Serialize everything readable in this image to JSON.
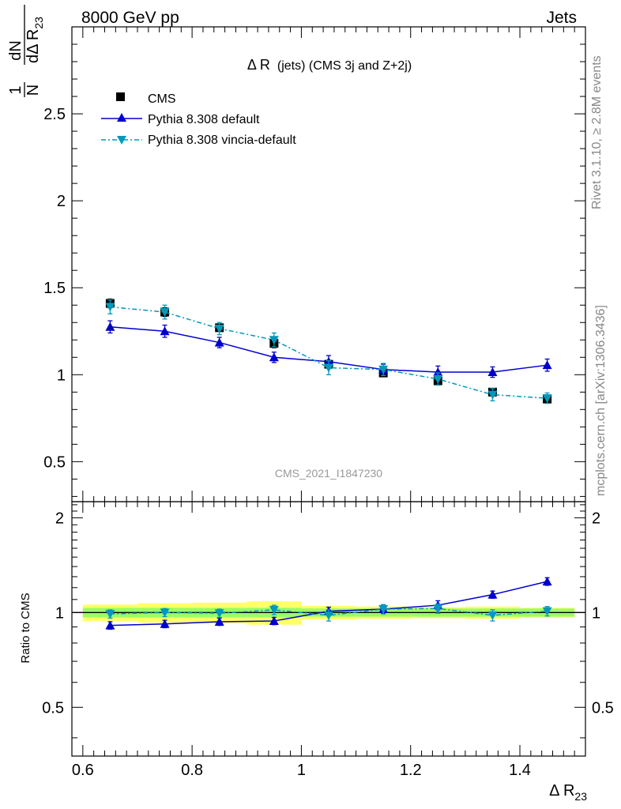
{
  "header": {
    "left": "8000 GeV pp",
    "right": "Jets"
  },
  "side_labels": {
    "rivet": "Rivet 3.1.10, ≥ 2.8M events",
    "mcplots": "mcplots.cern.ch [arXiv:1306.3436]"
  },
  "chart_data": [
    {
      "type": "line",
      "panel": "main",
      "title": "Δ R (jets) (CMS 3j and Z+2j)",
      "title_main": "Δ R",
      "title_sub": "(jets) (CMS 3j and Z+2j)",
      "watermark": "CMS_2021_I1847230",
      "ylabel": "1/N dN/dΔ R_23",
      "ylabel_parts": {
        "one": "1",
        "N": "N",
        "dN": "dN",
        "d": "dΔ R",
        "sub": "23"
      },
      "xlim": [
        0.58,
        1.52
      ],
      "ylim": [
        0.27,
        3.0
      ],
      "x_ticks": [
        0.6,
        0.8,
        1.0,
        1.2,
        1.4
      ],
      "y_ticks": [
        0.5,
        1.0,
        1.5,
        2.0,
        2.5
      ],
      "y_tick_labels": [
        "0.5",
        "1",
        "1.5",
        "2",
        "2.5"
      ],
      "legend_position": "top-left",
      "x": [
        0.65,
        0.75,
        0.85,
        0.95,
        1.05,
        1.15,
        1.25,
        1.35,
        1.45
      ],
      "series": [
        {
          "name": "CMS",
          "marker": "square",
          "color": "#000000",
          "values": [
            1.41,
            1.36,
            1.27,
            1.18,
            1.06,
            1.01,
            0.965,
            0.9,
            0.86
          ],
          "errors": [
            0.025,
            0.025,
            0.02,
            0.025,
            0.02,
            0.02,
            0.02,
            0.02,
            0.02
          ]
        },
        {
          "name": "Pythia 8.308 default",
          "marker": "triangle-up",
          "line": "solid",
          "color": "#0000cc",
          "values": [
            1.275,
            1.25,
            1.185,
            1.1,
            1.075,
            1.03,
            1.015,
            1.015,
            1.055
          ],
          "errors": [
            0.035,
            0.035,
            0.03,
            0.03,
            0.035,
            0.03,
            0.035,
            0.03,
            0.035
          ]
        },
        {
          "name": "Pythia 8.308 vincia-default",
          "marker": "triangle-down",
          "line": "dashdot",
          "color": "#0099bb",
          "values": [
            1.39,
            1.36,
            1.265,
            1.2,
            1.04,
            1.03,
            0.975,
            0.885,
            0.865
          ],
          "errors": [
            0.04,
            0.04,
            0.035,
            0.04,
            0.04,
            0.035,
            0.035,
            0.035,
            0.03
          ]
        }
      ]
    },
    {
      "type": "line",
      "panel": "ratio",
      "ylabel": "Ratio to CMS",
      "xlabel": "Δ R_23",
      "xlabel_parts": {
        "main": "Δ R",
        "sub": "23"
      },
      "xlim": [
        0.58,
        1.52
      ],
      "ylim": [
        0.35,
        2.25
      ],
      "x_ticks": [
        0.6,
        0.8,
        1.0,
        1.2,
        1.4
      ],
      "x_tick_labels": [
        "0.6",
        "0.8",
        "1",
        "1.2",
        "1.4"
      ],
      "y_ticks": [
        0.5,
        1.0,
        2.0
      ],
      "y_tick_labels": [
        "0.5",
        "1",
        "2"
      ],
      "x": [
        0.65,
        0.75,
        0.85,
        0.95,
        1.05,
        1.15,
        1.25,
        1.35,
        1.45
      ],
      "bands": {
        "inner_color": "#99ff66",
        "outer_color": "#ffff66",
        "inner_halfwidth": [
          0.035,
          0.035,
          0.035,
          0.035,
          0.03,
          0.03,
          0.03,
          0.03,
          0.03
        ],
        "outer_halfwidth": [
          0.06,
          0.07,
          0.075,
          0.085,
          0.05,
          0.045,
          0.04,
          0.045,
          0.035
        ]
      },
      "series": [
        {
          "name": "Pythia 8.308 default",
          "marker": "triangle-up",
          "line": "solid",
          "color": "#0000cc",
          "values": [
            0.91,
            0.92,
            0.935,
            0.94,
            1.01,
            1.025,
            1.055,
            1.14,
            1.255
          ],
          "errors": [
            0.025,
            0.025,
            0.025,
            0.025,
            0.03,
            0.03,
            0.035,
            0.03,
            0.035
          ]
        },
        {
          "name": "Pythia 8.308 vincia-default",
          "marker": "triangle-down",
          "line": "dashdot",
          "color": "#0099bb",
          "values": [
            0.99,
            1.0,
            0.995,
            1.02,
            0.98,
            1.025,
            1.03,
            0.98,
            1.01
          ],
          "errors": [
            0.03,
            0.03,
            0.03,
            0.035,
            0.04,
            0.035,
            0.035,
            0.04,
            0.035
          ]
        }
      ]
    }
  ]
}
